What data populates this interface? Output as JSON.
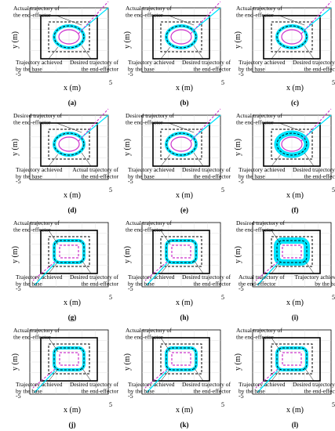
{
  "axes": {
    "xlabel": "x (m)",
    "ylabel": "y (m)",
    "ticks": [
      "-5",
      "5"
    ]
  },
  "colors": {
    "frame": "#000000",
    "dashed_box": "#000000",
    "actual_trajectory": "#00e5ff",
    "desired_trajectory": "#cc33cc",
    "base_trajectory": "#000000",
    "grid": "#d8d8d8"
  },
  "label_text": {
    "actual": "Actual trajectory of\nthe end-effector",
    "desired": "Desired trajectory of\nthe end-effector",
    "base": "Trajectory achieved\nby the base",
    "desired_bottom": "Desired trajectory of\nthe end-effector",
    "actual_bottom": "Actual trajectory of\nthe end-effector"
  },
  "panels": [
    {
      "id": "(a)",
      "shape": "ellipse",
      "labels": [
        "actual",
        "base",
        "desired_bottom"
      ]
    },
    {
      "id": "(b)",
      "shape": "ellipse",
      "labels": [
        "actual",
        "base",
        "desired_bottom"
      ]
    },
    {
      "id": "(c)",
      "shape": "ellipse",
      "labels": [
        "actual",
        "base",
        "desired_bottom"
      ]
    },
    {
      "id": "(d)",
      "shape": "ellipse",
      "labels": [
        "desired",
        "base",
        "actual_bottom"
      ]
    },
    {
      "id": "(e)",
      "shape": "ellipse",
      "labels": [
        "desired",
        "base",
        "desired_bottom"
      ]
    },
    {
      "id": "(f)",
      "shape": "ellipse",
      "labels": [
        "actual",
        "base",
        "desired_bottom"
      ]
    },
    {
      "id": "(g)",
      "shape": "rectangle",
      "labels": [
        "actual",
        "base",
        "desired_bottom"
      ]
    },
    {
      "id": "(h)",
      "shape": "rectangle",
      "labels": [
        "actual",
        "base",
        "desired_bottom"
      ]
    },
    {
      "id": "(i)",
      "shape": "rectangle",
      "labels": [
        "desired",
        "actual_bottom",
        "base_right"
      ]
    },
    {
      "id": "(j)",
      "shape": "rectangle",
      "labels": [
        "actual",
        "base",
        "desired_bottom"
      ]
    },
    {
      "id": "(k)",
      "shape": "rectangle",
      "labels": [
        "actual",
        "base",
        "desired_bottom"
      ]
    },
    {
      "id": "(l)",
      "shape": "rectangle",
      "labels": [
        "actual",
        "base",
        "desired_bottom"
      ]
    }
  ]
}
